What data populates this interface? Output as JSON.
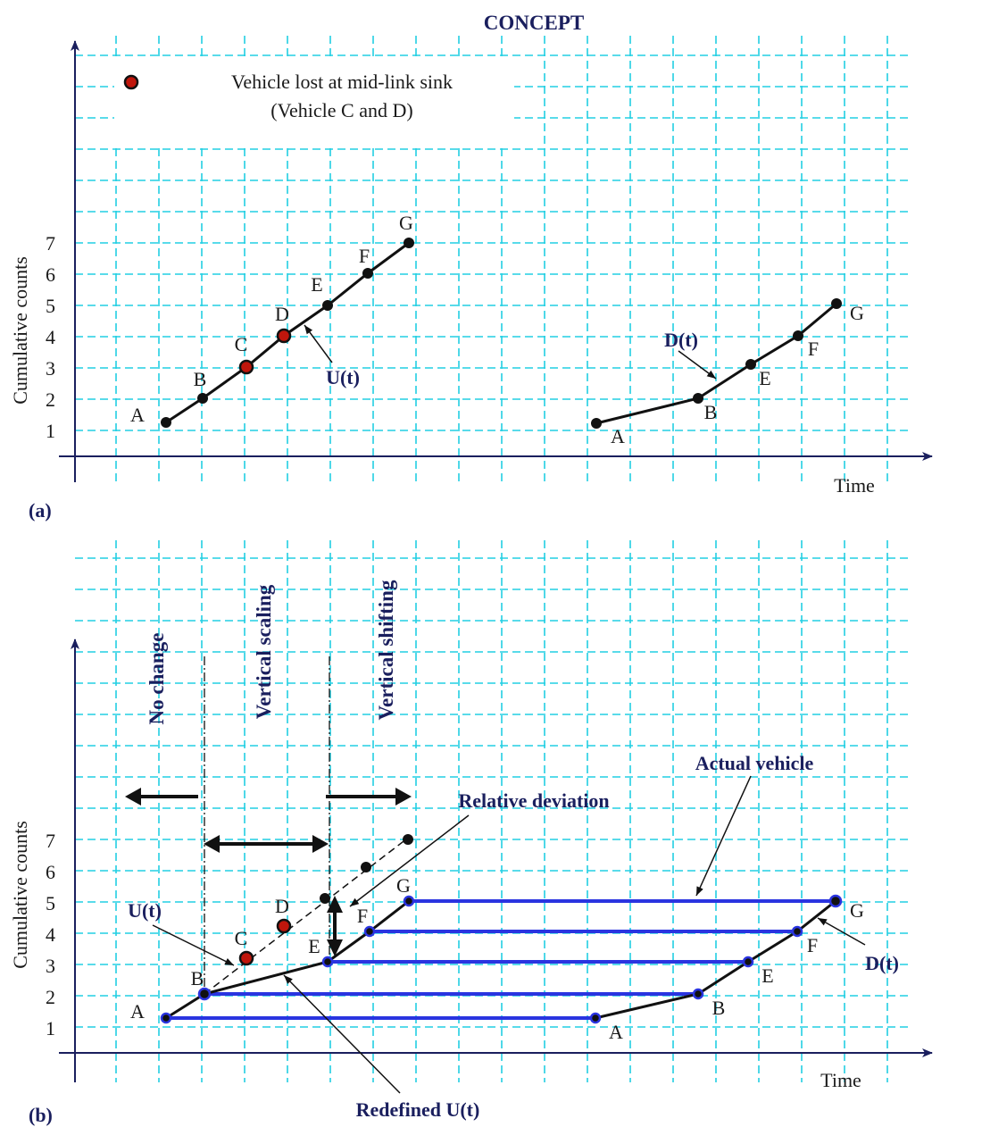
{
  "title": "CONCEPT",
  "panel_a": {
    "label": "(a)",
    "y_axis_label": "Cumulative counts",
    "x_axis_label": "Time",
    "y_ticks": [
      "1",
      "2",
      "3",
      "4",
      "5",
      "6",
      "7"
    ],
    "legend": {
      "line1": "Vehicle lost at mid-link sink",
      "line2": "(Vehicle C and D)"
    },
    "upstream_points": [
      "A",
      "B",
      "C",
      "D",
      "E",
      "F",
      "G"
    ],
    "downstream_points": [
      "A",
      "B",
      "E",
      "F",
      "G"
    ],
    "upstream_label": "U(t)",
    "downstream_label": "D(t)"
  },
  "panel_b": {
    "label": "(b)",
    "y_axis_label": "Cumulative counts",
    "x_axis_label": "Time",
    "y_ticks": [
      "1",
      "2",
      "3",
      "4",
      "5",
      "6",
      "7"
    ],
    "regions": {
      "no_change": "No change",
      "vertical_scaling": "Vertical scaling",
      "vertical_shifting": "Vertical shifting"
    },
    "annotations": {
      "relative_deviation": "Relative deviation",
      "actual_vehicle": "Actual vehicle",
      "redefined_u": "Redefined U(t)",
      "upstream": "U(t)",
      "downstream": "D(t)"
    },
    "upstream_points": [
      "A",
      "B",
      "C",
      "D",
      "E",
      "F",
      "G"
    ],
    "downstream_points": [
      "A",
      "B",
      "E",
      "F",
      "G"
    ]
  },
  "colors": {
    "grid": "#22cfe3",
    "curve": "#111111",
    "lost_vehicle": "#c0160c",
    "actual_vehicle": "#2a34e0",
    "annotation_text": "#1a1f5e"
  }
}
